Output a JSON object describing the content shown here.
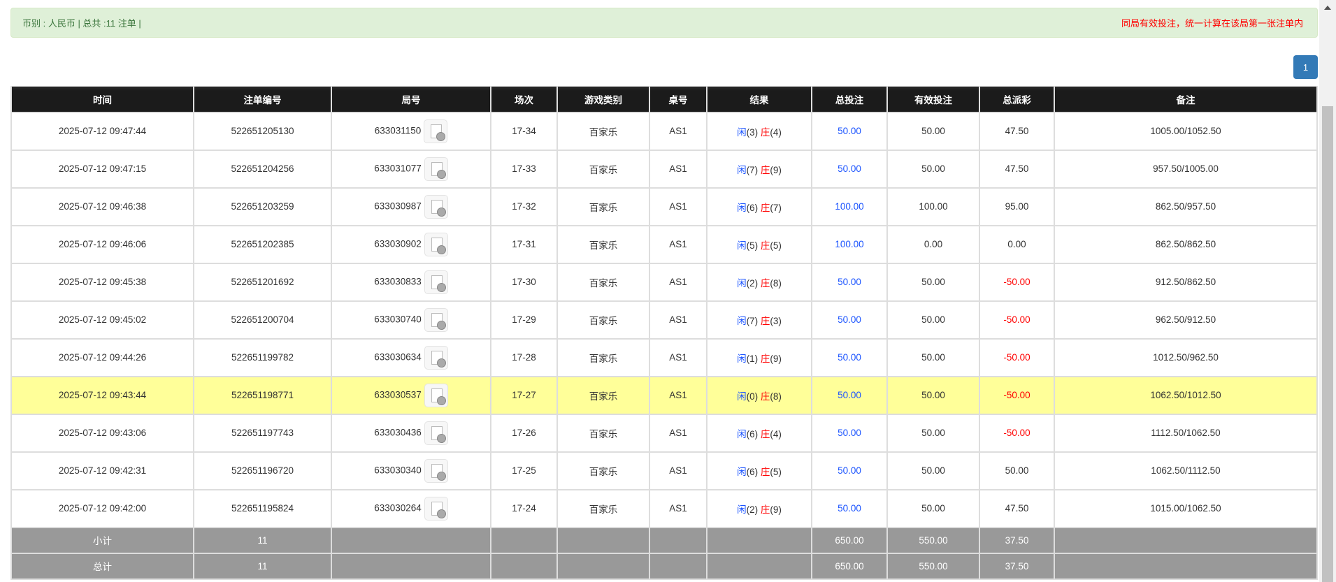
{
  "summary": {
    "left": "币别 : 人民币 | 总共 :11 注单 |",
    "right": "同局有效投注，统一计算在该局第一张注单内"
  },
  "pagination": {
    "current": "1"
  },
  "colors": {
    "accent": "#337ab7",
    "player": "#1a53ff",
    "banker": "#ff0000",
    "highlight": "#ffff99"
  },
  "table": {
    "headers": [
      "时间",
      "注单编号",
      "局号",
      "场次",
      "游戏类别",
      "桌号",
      "结果",
      "总投注",
      "有效投注",
      "总派彩",
      "备注"
    ],
    "rows": [
      {
        "time": "2025-07-12 09:47:44",
        "bet_id": "522651205130",
        "round": "633031150",
        "shoe": "17-34",
        "game": "百家乐",
        "table": "AS1",
        "p": "闲",
        "pv": "(3)",
        "b": "庄",
        "bv": "(4)",
        "total": "50.00",
        "valid": "50.00",
        "payout": "47.50",
        "payout_neg": false,
        "remark": "1005.00/1052.50"
      },
      {
        "time": "2025-07-12 09:47:15",
        "bet_id": "522651204256",
        "round": "633031077",
        "shoe": "17-33",
        "game": "百家乐",
        "table": "AS1",
        "p": "闲",
        "pv": "(7)",
        "b": "庄",
        "bv": "(9)",
        "total": "50.00",
        "valid": "50.00",
        "payout": "47.50",
        "payout_neg": false,
        "remark": "957.50/1005.00"
      },
      {
        "time": "2025-07-12 09:46:38",
        "bet_id": "522651203259",
        "round": "633030987",
        "shoe": "17-32",
        "game": "百家乐",
        "table": "AS1",
        "p": "闲",
        "pv": "(6)",
        "b": "庄",
        "bv": "(7)",
        "total": "100.00",
        "valid": "100.00",
        "payout": "95.00",
        "payout_neg": false,
        "remark": "862.50/957.50"
      },
      {
        "time": "2025-07-12 09:46:06",
        "bet_id": "522651202385",
        "round": "633030902",
        "shoe": "17-31",
        "game": "百家乐",
        "table": "AS1",
        "p": "闲",
        "pv": "(5)",
        "b": "庄",
        "bv": "(5)",
        "total": "100.00",
        "valid": "0.00",
        "payout": "0.00",
        "payout_neg": false,
        "remark": "862.50/862.50"
      },
      {
        "time": "2025-07-12 09:45:38",
        "bet_id": "522651201692",
        "round": "633030833",
        "shoe": "17-30",
        "game": "百家乐",
        "table": "AS1",
        "p": "闲",
        "pv": "(2)",
        "b": "庄",
        "bv": "(8)",
        "total": "50.00",
        "valid": "50.00",
        "payout": "-50.00",
        "payout_neg": true,
        "remark": "912.50/862.50"
      },
      {
        "time": "2025-07-12 09:45:02",
        "bet_id": "522651200704",
        "round": "633030740",
        "shoe": "17-29",
        "game": "百家乐",
        "table": "AS1",
        "p": "闲",
        "pv": "(7)",
        "b": "庄",
        "bv": "(3)",
        "total": "50.00",
        "valid": "50.00",
        "payout": "-50.00",
        "payout_neg": true,
        "remark": "962.50/912.50"
      },
      {
        "time": "2025-07-12 09:44:26",
        "bet_id": "522651199782",
        "round": "633030634",
        "shoe": "17-28",
        "game": "百家乐",
        "table": "AS1",
        "p": "闲",
        "pv": "(1)",
        "b": "庄",
        "bv": "(9)",
        "total": "50.00",
        "valid": "50.00",
        "payout": "-50.00",
        "payout_neg": true,
        "remark": "1012.50/962.50"
      },
      {
        "time": "2025-07-12 09:43:44",
        "bet_id": "522651198771",
        "round": "633030537",
        "shoe": "17-27",
        "game": "百家乐",
        "table": "AS1",
        "p": "闲",
        "pv": "(0)",
        "b": "庄",
        "bv": "(8)",
        "total": "50.00",
        "valid": "50.00",
        "payout": "-50.00",
        "payout_neg": true,
        "remark": "1062.50/1012.50",
        "highlight": true
      },
      {
        "time": "2025-07-12 09:43:06",
        "bet_id": "522651197743",
        "round": "633030436",
        "shoe": "17-26",
        "game": "百家乐",
        "table": "AS1",
        "p": "闲",
        "pv": "(6)",
        "b": "庄",
        "bv": "(4)",
        "total": "50.00",
        "valid": "50.00",
        "payout": "-50.00",
        "payout_neg": true,
        "remark": "1112.50/1062.50"
      },
      {
        "time": "2025-07-12 09:42:31",
        "bet_id": "522651196720",
        "round": "633030340",
        "shoe": "17-25",
        "game": "百家乐",
        "table": "AS1",
        "p": "闲",
        "pv": "(6)",
        "b": "庄",
        "bv": "(5)",
        "total": "50.00",
        "valid": "50.00",
        "payout": "50.00",
        "payout_neg": false,
        "remark": "1062.50/1112.50"
      },
      {
        "time": "2025-07-12 09:42:00",
        "bet_id": "522651195824",
        "round": "633030264",
        "shoe": "17-24",
        "game": "百家乐",
        "table": "AS1",
        "p": "闲",
        "pv": "(2)",
        "b": "庄",
        "bv": "(9)",
        "total": "50.00",
        "valid": "50.00",
        "payout": "47.50",
        "payout_neg": false,
        "remark": "1015.00/1062.50"
      }
    ],
    "subtotal": {
      "label": "小计",
      "count": "11",
      "total": "650.00",
      "valid": "550.00",
      "payout": "37.50"
    },
    "grandtotal": {
      "label": "总计",
      "count": "11",
      "total": "650.00",
      "valid": "550.00",
      "payout": "37.50"
    }
  }
}
